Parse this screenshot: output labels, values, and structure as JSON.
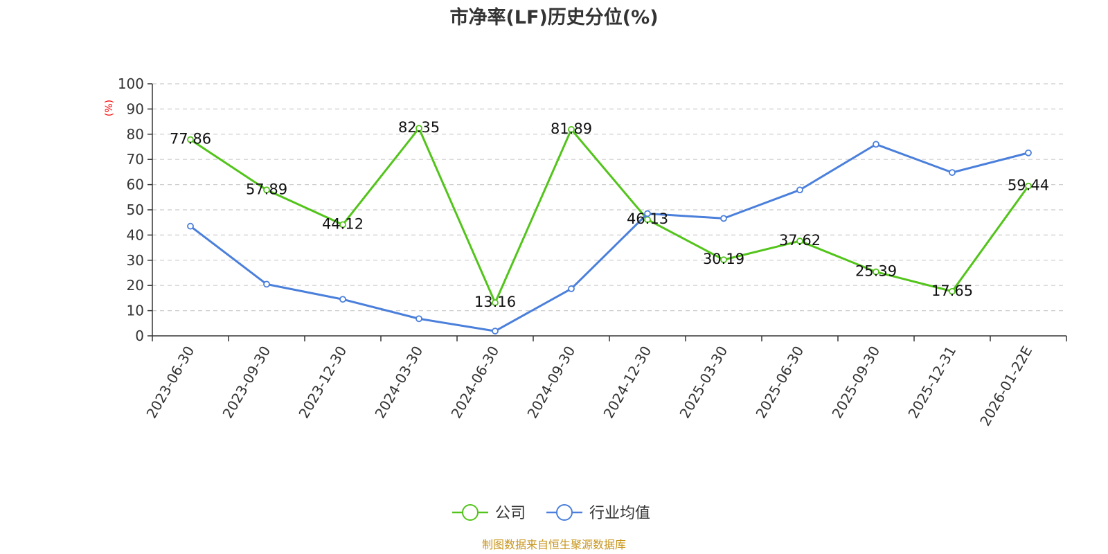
{
  "chart_data": {
    "type": "line",
    "title": "市净率(LF)历史分位(%)",
    "ylabel": "(%)",
    "ylim": [
      0,
      100
    ],
    "yticks": [
      0,
      10,
      20,
      30,
      40,
      50,
      60,
      70,
      80,
      90,
      100
    ],
    "grid": true,
    "legend_position": "bottom-center",
    "categories": [
      "2023-06-30",
      "2023-09-30",
      "2023-12-30",
      "2024-03-30",
      "2024-06-30",
      "2024-09-30",
      "2024-12-30",
      "2025-03-30",
      "2025-06-30",
      "2025-09-30",
      "2025-12-31",
      "2026-01-22E"
    ],
    "series": [
      {
        "name": "公司",
        "color": "#52c41a",
        "values": [
          77.86,
          57.89,
          44.12,
          82.35,
          13.16,
          81.89,
          46.13,
          30.19,
          37.62,
          25.39,
          17.65,
          59.44
        ],
        "show_labels": true
      },
      {
        "name": "行业均值",
        "color": "#4a7fdb",
        "values": [
          43.5,
          20.5,
          14.5,
          6.8,
          1.9,
          18.7,
          48.5,
          46.6,
          57.9,
          76.0,
          64.8,
          72.6
        ],
        "show_labels": false
      }
    ],
    "source": "制图数据来自恒生聚源数据库"
  },
  "colors": {
    "title": "#333333",
    "ylabel": "#ff0000",
    "source": "#c8961e",
    "grid": "#cccccc",
    "axis": "#333333"
  }
}
